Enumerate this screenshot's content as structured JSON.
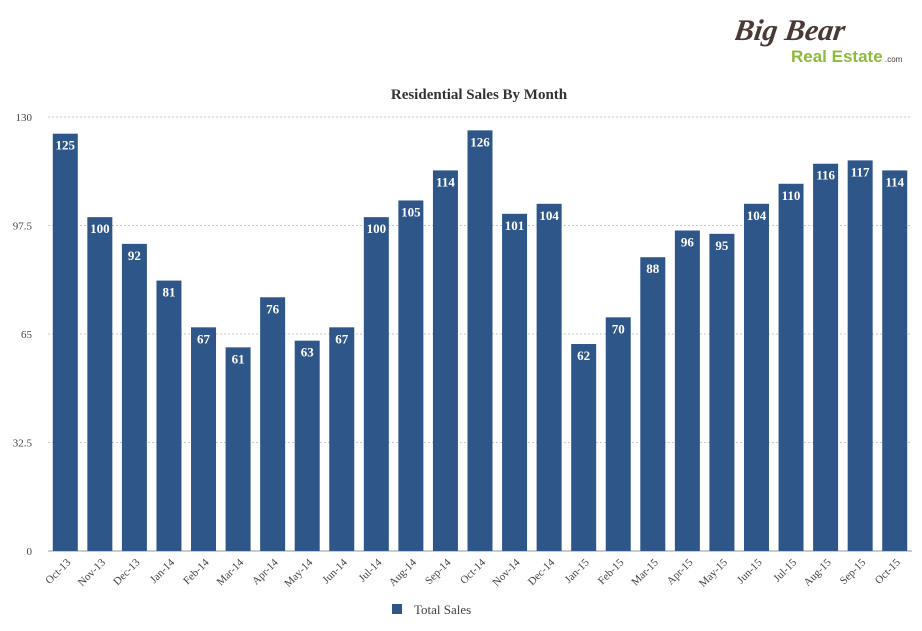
{
  "logo": {
    "line1": "Big Bear",
    "line2": "Real Estate",
    "suffix": ".com"
  },
  "chart_data": {
    "type": "bar",
    "title": "Residential Sales By Month",
    "xlabel": "",
    "ylabel": "",
    "ylim": [
      0,
      130
    ],
    "yticks": [
      "0",
      "32.5",
      "65",
      "97.5",
      "130"
    ],
    "grid": true,
    "legend_position": "bottom",
    "categories": [
      "Oct-13",
      "Nov-13",
      "Dec-13",
      "Jan-14",
      "Feb-14",
      "Mar-14",
      "Apr-14",
      "May-14",
      "Jun-14",
      "Jul-14",
      "Aug-14",
      "Sep-14",
      "Oct-14",
      "Nov-14",
      "Dec-14",
      "Jan-15",
      "Feb-15",
      "Mar-15",
      "Apr-15",
      "May-15",
      "Jun-15",
      "Jul-15",
      "Aug-15",
      "Sep-15",
      "Oct-15"
    ],
    "series": [
      {
        "name": "Total Sales",
        "color": "#2e5688",
        "values": [
          125,
          100,
          92,
          81,
          67,
          61,
          76,
          63,
          67,
          100,
          105,
          114,
          126,
          101,
          104,
          62,
          70,
          88,
          96,
          95,
          104,
          110,
          116,
          117,
          114
        ]
      }
    ]
  }
}
